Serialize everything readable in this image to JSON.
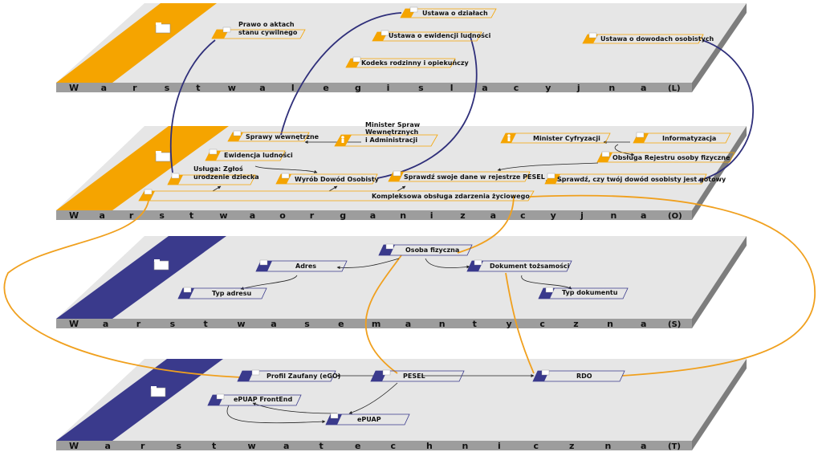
{
  "colors": {
    "legislative_accent": "#f5a400",
    "organizational_accent": "#f5a400",
    "semantic_accent": "#3a3a8c",
    "technical_accent": "#3a3a8c",
    "plane_fill": "#e6e6e6",
    "plane_edge": "#9a9a9a",
    "link_orange": "#f0a01e",
    "link_navy": "#2f2f7a"
  },
  "layers": [
    {
      "id": "L",
      "letters": [
        "W",
        "a",
        "r",
        "s",
        "t",
        "w",
        "a",
        "l",
        "e",
        "g",
        "i",
        "s",
        "l",
        "a",
        "c",
        "y",
        "j",
        "n",
        "a"
      ],
      "code": "(L)",
      "accent": "#f5a400"
    },
    {
      "id": "O",
      "letters": [
        "W",
        "a",
        "r",
        "s",
        "t",
        "w",
        "a",
        "o",
        "r",
        "g",
        "a",
        "n",
        "i",
        "z",
        "a",
        "c",
        "y",
        "j",
        "n",
        "a"
      ],
      "code": "(O)",
      "accent": "#f5a400"
    },
    {
      "id": "S",
      "letters": [
        "W",
        "a",
        "r",
        "s",
        "t",
        "w",
        "a",
        "s",
        "e",
        "m",
        "a",
        "n",
        "t",
        "y",
        "c",
        "z",
        "n",
        "a"
      ],
      "code": "(S)",
      "accent": "#3a3a8c"
    },
    {
      "id": "T",
      "letters": [
        "W",
        "a",
        "r",
        "s",
        "t",
        "w",
        "a",
        "t",
        "e",
        "c",
        "h",
        "n",
        "i",
        "c",
        "z",
        "n",
        "a"
      ],
      "code": "(T)",
      "accent": "#3a3a8c"
    }
  ],
  "nodes": {
    "prawo_aktach_line1": "Prawo o aktach",
    "prawo_aktach_line2": "stanu cywilnego",
    "ustawa_dzialach": "Ustawa o działach",
    "ustawa_ewidencji": "Ustawa o ewidencji ludności",
    "kodeks_rodzinny": "Kodeks rodzinny i opiekuńczy",
    "ustawa_dowodach": "Ustawa o dowodach osobistych",
    "sprawy_wewnetrzne": "Sprawy wewnętrzne",
    "minister_spraw_line1": "Minister Spraw",
    "minister_spraw_line2": "Wewnętrznych",
    "minister_spraw_line3": "i Administracji",
    "minister_cyfryzacji": "Minister Cyfryzacji",
    "informatyzacja": "Informatyzacja",
    "ewidencja_ludnosci": "Ewidencja ludności",
    "obsluga_rejestru": "Obsługa Rejestru osoby fizyczne",
    "usluga_line1": "Usługa: Zgłoś",
    "usluga_line2": "urodzenie dziecka",
    "wyrob_dowod": "Wyrób Dowód Osobisty",
    "sprawdz_pesel": "Sprawdź swoje dane w rejestrze PESEL",
    "sprawdz_dowod": "Sprawdź, czy twój dowód osobisty jest gotowy",
    "kompleksowa": "Kompleksowa obsługa zdarzenia życiowego",
    "osoba_fizyczna": "Osoba fizyczna",
    "adres": "Adres",
    "dokument_tozsamosci": "Dokument tożsamości",
    "typ_adresu": "Typ adresu",
    "typ_dokumentu": "Typ dokumentu",
    "profil_zaufany": "Profil Zaufany (eGO)",
    "pesel": "PESEL",
    "rdo": "RDO",
    "epuap_frontend": "ePUAP FrontEnd",
    "epuap": "ePUAP"
  }
}
